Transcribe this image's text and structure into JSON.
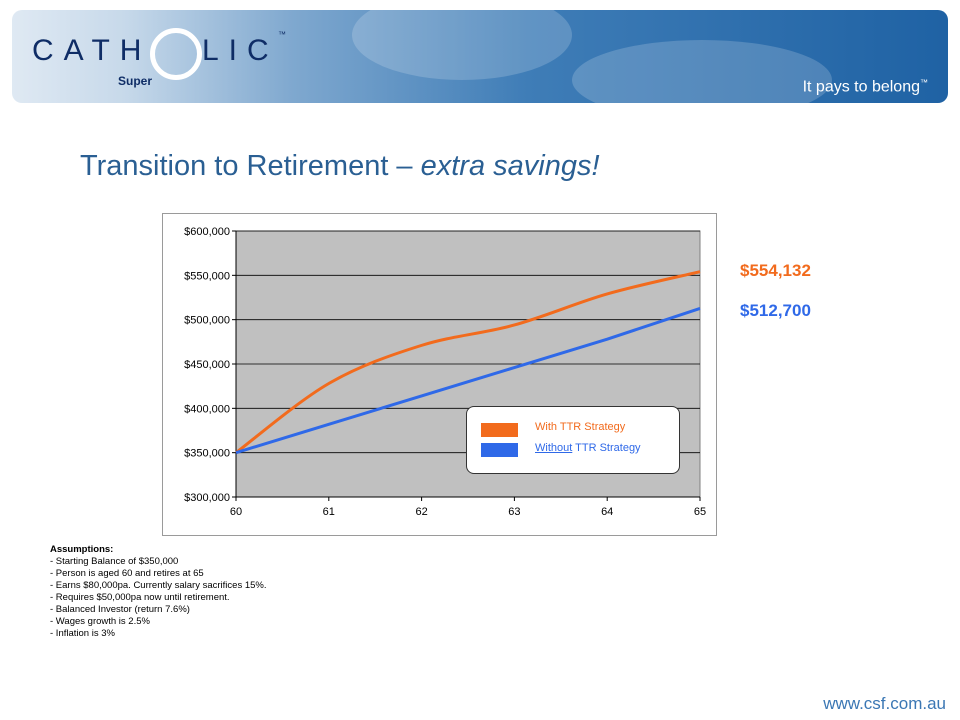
{
  "header": {
    "logo_left": "CATH",
    "logo_right": "LIC",
    "logo_super": "Super",
    "tagline": "It pays to belong"
  },
  "title": {
    "main": "Transition to Retirement – ",
    "emph": "extra savings!"
  },
  "callouts": {
    "with_ttr": "$554,132",
    "without_ttr": "$512,700"
  },
  "colors": {
    "with_ttr": "#f26b1d",
    "without_ttr": "#2f69e8",
    "plot_bg": "#c0c0c0",
    "title": "#2a5f93"
  },
  "chart_data": {
    "type": "line",
    "x": [
      60,
      61,
      62,
      63,
      64,
      65
    ],
    "x_tick_labels": [
      "60",
      "61",
      "62",
      "63",
      "64",
      "65"
    ],
    "y_tick_labels": [
      "$600,000",
      "$550,000",
      "$500,000",
      "$450,000",
      "$400,000",
      "$350,000",
      "$300,000"
    ],
    "y_ticks": [
      600000,
      550000,
      500000,
      450000,
      400000,
      350000,
      300000
    ],
    "ylim": [
      300000,
      600000
    ],
    "xlim": [
      60,
      65
    ],
    "grid": "horizontal",
    "legend_position": "bottom-right",
    "series": [
      {
        "name": "With TTR Strategy",
        "values": [
          350000,
          428000,
          471000,
          494000,
          529000,
          554132
        ]
      },
      {
        "name": "Without TTR Strategy",
        "values": [
          350000,
          382000,
          414000,
          446000,
          478000,
          512700
        ]
      }
    ],
    "legend": {
      "with_label": "With TTR Strategy",
      "without_word": "Without",
      "without_rest": " TTR Strategy"
    }
  },
  "assumptions": {
    "heading": "Assumptions:",
    "items": [
      "- Starting Balance of $350,000",
      "- Person is aged 60 and retires at 65",
      "- Earns $80,000pa. Currently salary sacrifices 15%.",
      "- Requires $50,000pa now until retirement.",
      "- Balanced Investor (return 7.6%)",
      "- Wages growth is 2.5%",
      "- Inflation is 3%"
    ]
  },
  "footer": {
    "url": "www.csf.com.au"
  }
}
